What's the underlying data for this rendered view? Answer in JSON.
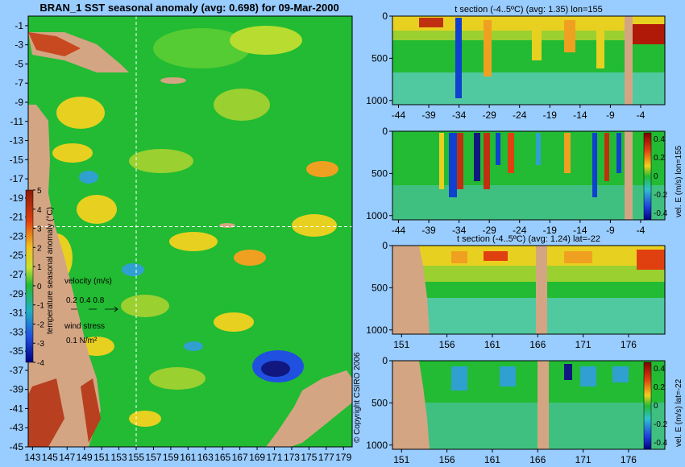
{
  "chart_data": [
    {
      "type": "heatmap",
      "title": "BRAN_1 SST seasonal anomaly (avg: 0.698) for 09-Mar-2000",
      "x_ticks": [
        "143",
        "145",
        "147",
        "149",
        "151",
        "153",
        "155",
        "157",
        "159",
        "161",
        "163",
        "165",
        "167",
        "169",
        "171",
        "173",
        "175",
        "177",
        "179"
      ],
      "y_ticks": [
        "-1",
        "-3",
        "-5",
        "-7",
        "-9",
        "-11",
        "-13",
        "-15",
        "-17",
        "-19",
        "-21",
        "-23",
        "-25",
        "-27",
        "-29",
        "-31",
        "-33",
        "-35",
        "-37",
        "-39",
        "-41",
        "-43",
        "-45"
      ],
      "xlim": [
        142.5,
        180
      ],
      "ylim": [
        -45,
        0
      ],
      "crosshair": {
        "lon": 155,
        "lat": -22
      },
      "colorbar": {
        "label": "temperature seasonal anomaly (°C)",
        "ticks": [
          "5",
          "4",
          "3",
          "2",
          "1",
          "0",
          "-1",
          "-2",
          "-3",
          "-4"
        ],
        "range": [
          -4,
          5
        ]
      },
      "legend": {
        "velocity_label": "velocity (m/s)",
        "velocity_values": "0.2 0.4 0.8",
        "wind_label": "wind stress",
        "wind_value": "0.1 N/m²"
      }
    },
    {
      "type": "heatmap",
      "title": "t section (-4..5ºC) (avg: 1.35) lon=155",
      "x_ticks": [
        "-44",
        "-39",
        "-34",
        "-29",
        "-24",
        "-19",
        "-14",
        "-9",
        "-4"
      ],
      "y_ticks": [
        "0",
        "500",
        "1000"
      ],
      "xlim": [
        -45,
        0
      ],
      "ylim": [
        1050,
        0
      ]
    },
    {
      "type": "heatmap",
      "title": "",
      "x_ticks": [
        "-44",
        "-39",
        "-34",
        "-29",
        "-24",
        "-19",
        "-14",
        "-9",
        "-4"
      ],
      "y_ticks": [
        "0",
        "500",
        "1000"
      ],
      "xlim": [
        -45,
        0
      ],
      "ylim": [
        1050,
        0
      ],
      "colorbar": {
        "label": "vel. E (m/s) lon=155",
        "ticks": [
          "0.4",
          "0.2",
          "0",
          "-0.2",
          "-0.4"
        ]
      }
    },
    {
      "type": "heatmap",
      "title": "t section (-4..5ºC) (avg: 1.24) lat=-22",
      "x_ticks": [
        "151",
        "156",
        "161",
        "166",
        "171",
        "176"
      ],
      "y_ticks": [
        "0",
        "500",
        "1000"
      ],
      "xlim": [
        150,
        180
      ],
      "ylim": [
        1050,
        0
      ]
    },
    {
      "type": "heatmap",
      "title": "",
      "x_ticks": [
        "151",
        "156",
        "161",
        "166",
        "171",
        "176"
      ],
      "y_ticks": [
        "0",
        "500",
        "1000"
      ],
      "xlim": [
        150,
        180
      ],
      "ylim": [
        1050,
        0
      ],
      "colorbar": {
        "label": "vel. E (m/s) lat=-22",
        "ticks": [
          "0.4",
          "0.2",
          "0",
          "-0.2",
          "-0.4"
        ]
      }
    }
  ],
  "copyright": "© Copyright CSIRO 2006",
  "colors": {
    "background": "#99ccff",
    "land": "#d4a583",
    "field_base": "#22bb33",
    "warm": "#e8d020",
    "hot": "#c03010",
    "cold": "#1040d0"
  }
}
